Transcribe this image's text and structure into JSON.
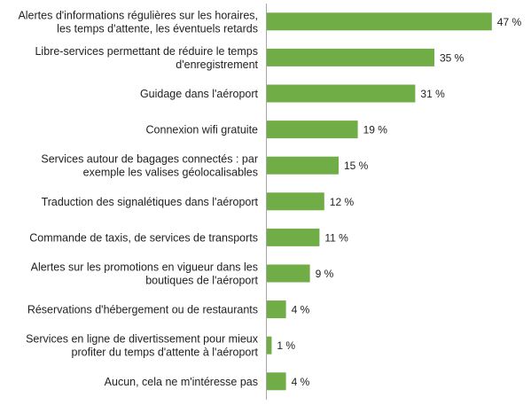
{
  "chart_data": {
    "type": "bar",
    "orientation": "horizontal",
    "title": "",
    "xlabel": "",
    "ylabel": "",
    "xlim": [
      0,
      50
    ],
    "grid": false,
    "legend": "none",
    "bar_color": "#70ad47",
    "categories": [
      [
        "Alertes d'informations régulières sur les horaires,",
        "les temps d'attente, les éventuels retards"
      ],
      [
        "Libre-services permettant de réduire le temps",
        "d'enregistrement"
      ],
      [
        "Guidage dans l'aéroport"
      ],
      [
        "Connexion wifi gratuite"
      ],
      [
        "Services autour de bagages connectés : par",
        "exemple les valises géolocalisables"
      ],
      [
        "Traduction des signalétiques dans l'aéroport"
      ],
      [
        "Commande de taxis, de services de transports"
      ],
      [
        "Alertes sur les promotions en vigueur dans les",
        "boutiques de l'aéroport"
      ],
      [
        "Réservations d'hébergement ou de restaurants"
      ],
      [
        "Services en ligne de divertissement pour mieux",
        "profiter du temps d'attente à l'aéroport"
      ],
      [
        "Aucun, cela ne m'intéresse pas"
      ]
    ],
    "values": [
      47,
      35,
      31,
      19,
      15,
      12,
      11,
      9,
      4,
      1,
      4
    ],
    "value_labels": [
      "47 %",
      "35 %",
      "31 %",
      "19 %",
      "15 %",
      "12 %",
      "11 %",
      "9 %",
      "4 %",
      "1 %",
      "4 %"
    ]
  }
}
